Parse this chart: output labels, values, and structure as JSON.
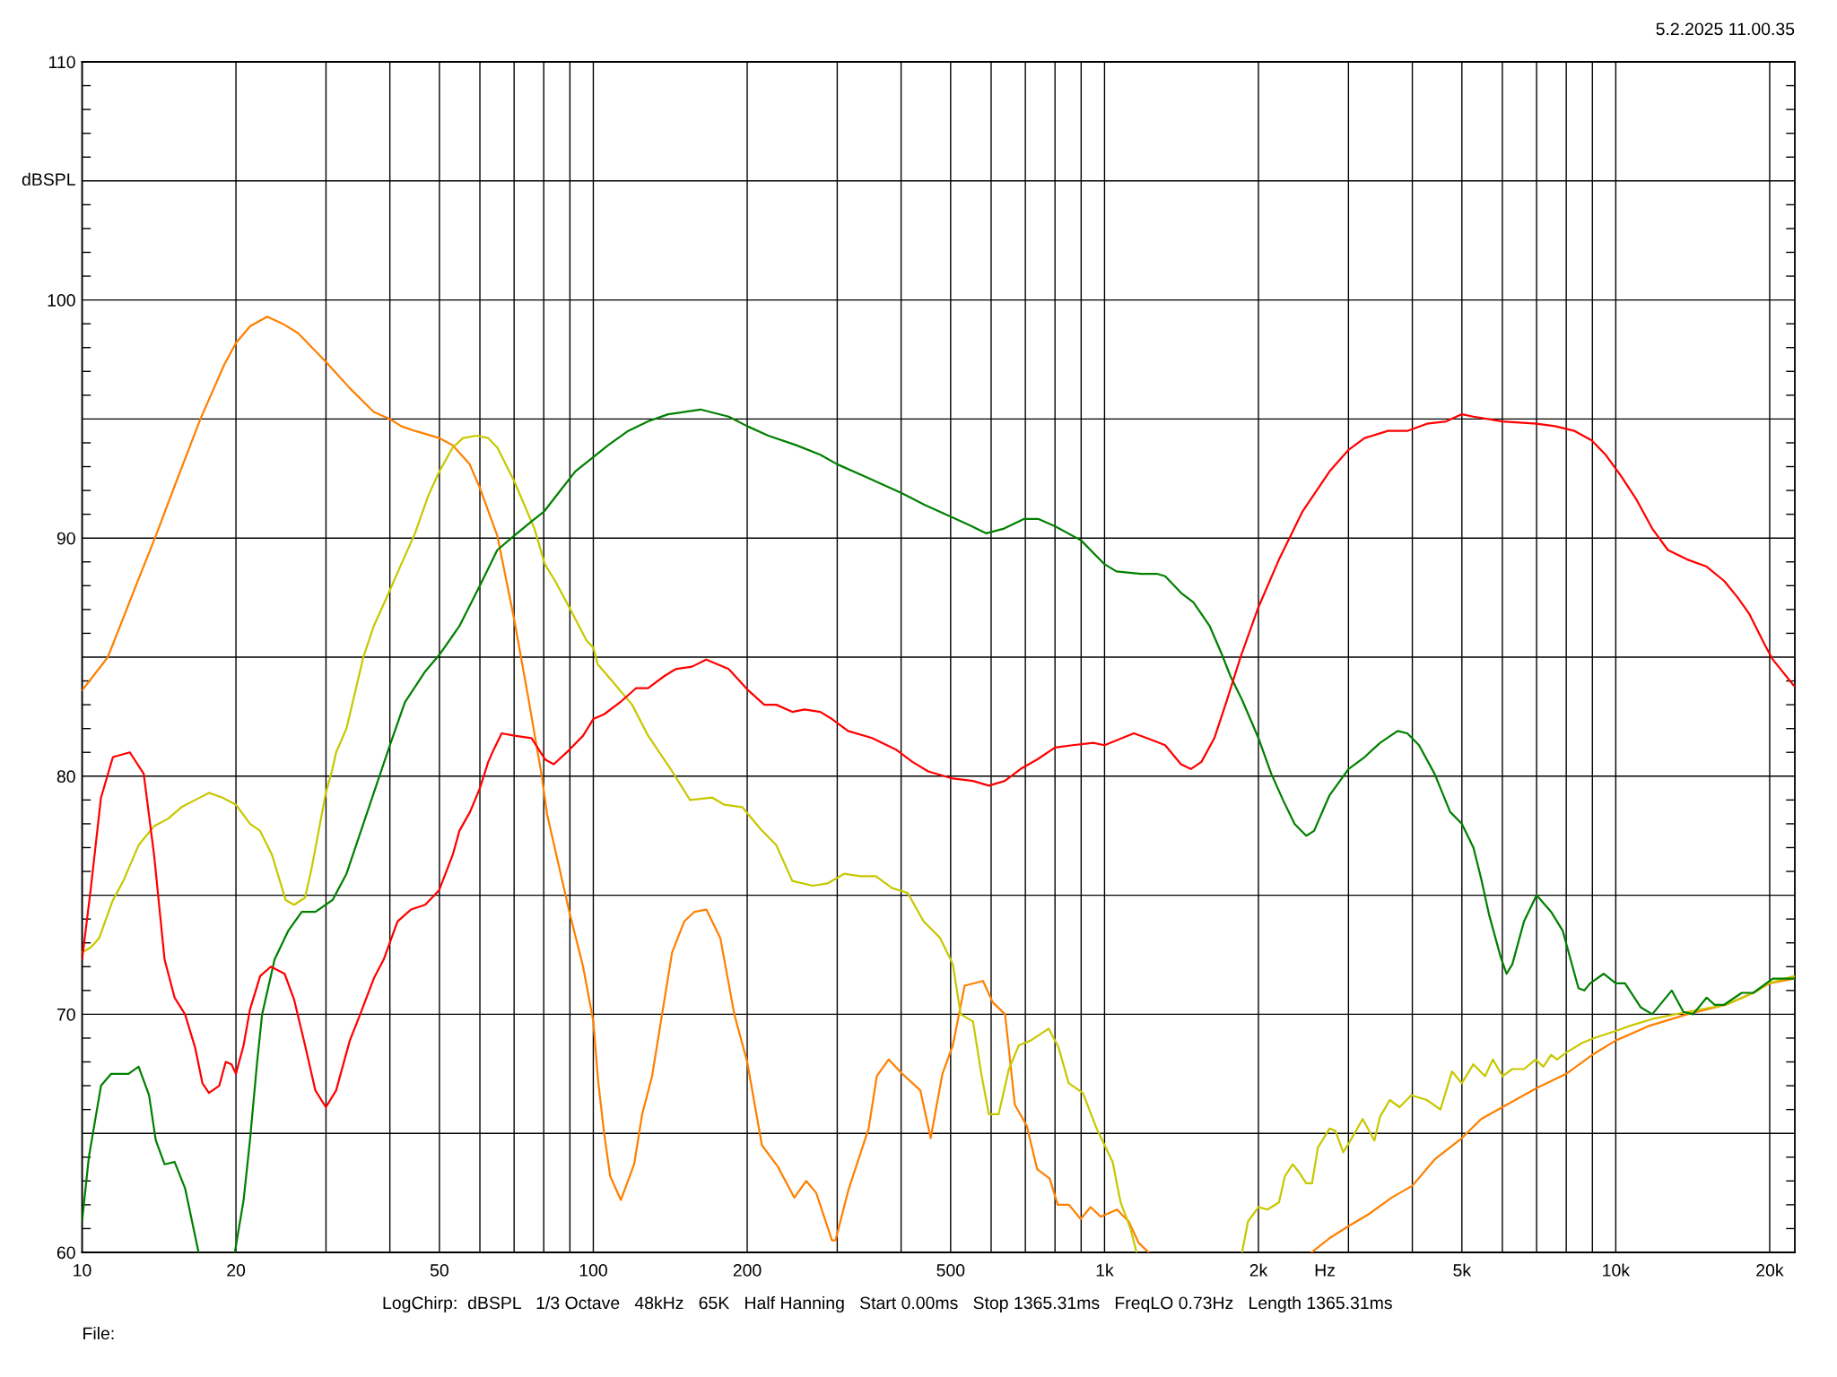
{
  "chart_data": {
    "type": "line",
    "xlabel": "Hz",
    "ylabel": "dBSPL",
    "annotations": [
      "5.2.2025 11.00.35",
      "LogChirp:  dBSPL   1/3 Octave   48kHz   65K   Half Hanning   Start 0.00ms   Stop 1365.31ms   FreqLO 0.73Hz   Length 1365.31ms",
      "File:"
    ],
    "log": "x",
    "grid": true,
    "xlim": [
      10,
      22400
    ],
    "ylim": [
      60,
      110
    ],
    "xticks": [
      10,
      20,
      {
        "value": 30,
        "label": null
      },
      {
        "value": 40,
        "label": null
      },
      50,
      {
        "value": 60,
        "label": null
      },
      {
        "value": 70,
        "label": null
      },
      {
        "value": 80,
        "label": null
      },
      {
        "value": 90,
        "label": null
      },
      100,
      200,
      {
        "value": 300,
        "label": null
      },
      {
        "value": 400,
        "label": null
      },
      500,
      {
        "value": 600,
        "label": null
      },
      {
        "value": 700,
        "label": null
      },
      {
        "value": 800,
        "label": null
      },
      {
        "value": 900,
        "label": null
      },
      {
        "value": 1000,
        "label": "1k"
      },
      {
        "value": 2000,
        "label": "2k"
      },
      {
        "value": 3000,
        "label": null
      },
      {
        "value": 4000,
        "label": null
      },
      {
        "value": 5000,
        "label": "5k"
      },
      {
        "value": 6000,
        "label": null
      },
      {
        "value": 7000,
        "label": null
      },
      {
        "value": 8000,
        "label": null
      },
      {
        "value": 9000,
        "label": null
      },
      {
        "value": 10000,
        "label": "10k"
      },
      {
        "value": 20000,
        "label": "20k"
      }
    ],
    "yticks": [
      60,
      {
        "value": 65,
        "label": null
      },
      70,
      {
        "value": 75,
        "label": null
      },
      80,
      {
        "value": 85,
        "label": null
      },
      90,
      {
        "value": 95,
        "label": null
      },
      100,
      {
        "value": 105,
        "label": null
      },
      110
    ],
    "series": [
      {
        "color": "#ff8000",
        "x": [
          10,
          11.23,
          12.8,
          13.94,
          15.18,
          17.04,
          18.99,
          20,
          21.33,
          23.03,
          24.7,
          26.47,
          30,
          33.38,
          37.2,
          40,
          42.1,
          44.8,
          50,
          53.07,
          57.3,
          60,
          64.9,
          70,
          74.6,
          79.3,
          81.2,
          85.7,
          90,
          95.5,
          100,
          102.2,
          105,
          107.9,
          113.2,
          120.2,
          124.6,
          130.3,
          136.3,
          142.6,
          150.6,
          157.6,
          166.4,
          177.2,
          188.7,
          200,
          213.7,
          229.6,
          247.3,
          260.8,
          272.9,
          293,
          297.6,
          315.3,
          345.6,
          358.5,
          378.2,
          402.2,
          436.3,
          457,
          481.8,
          505,
          532.5,
          578.5,
          604.4,
          638.9,
          667.6,
          705,
          738,
          781,
          810,
          851.6,
          898,
          939,
          983,
          1058,
          1115,
          1166,
          1220,
          1700,
          2540,
          2756,
          3000,
          3284,
          3646,
          4000,
          4421,
          5000,
          5453,
          6000,
          7000,
          8000,
          9000,
          10000,
          11580,
          13796,
          16437,
          18578,
          20000,
          22300
        ],
        "values": [
          83.6,
          85.0,
          88.1,
          90.1,
          92.2,
          95.0,
          97.3,
          98.2,
          98.9,
          99.3,
          99.0,
          98.6,
          97.4,
          96.3,
          95.3,
          95.0,
          94.7,
          94.5,
          94.2,
          93.9,
          93.1,
          92.1,
          90.1,
          86.6,
          83.3,
          80.0,
          78.4,
          76.2,
          74.2,
          72.0,
          69.7,
          67.2,
          65.0,
          63.2,
          62.2,
          63.7,
          65.8,
          67.4,
          70.0,
          72.6,
          73.9,
          74.3,
          74.4,
          73.2,
          70.0,
          68.0,
          64.5,
          63.6,
          62.3,
          63.0,
          62.5,
          60.5,
          60.5,
          62.6,
          65.2,
          67.4,
          68.1,
          67.5,
          66.8,
          64.8,
          67.5,
          68.7,
          71.2,
          71.4,
          70.5,
          70.0,
          66.2,
          65.3,
          63.5,
          63.1,
          62.0,
          62.0,
          61.4,
          61.9,
          61.5,
          61.8,
          61.3,
          60.4,
          60.0,
          null,
          60.0,
          60.6,
          61.1,
          61.6,
          62.3,
          62.8,
          63.9,
          64.8,
          65.6,
          66.1,
          66.9,
          67.5,
          68.3,
          68.9,
          69.5,
          70.0,
          70.4,
          70.9,
          71.3,
          71.5
        ]
      },
      {
        "color": "#c8c800",
        "x": [
          10,
          10.39,
          10.8,
          11.49,
          12.04,
          12.9,
          13.83,
          14.7,
          15.65,
          16.64,
          17.71,
          18.83,
          20,
          21.3,
          22.3,
          23.52,
          25.01,
          26.0,
          27.3,
          28.1,
          29.98,
          30.8,
          31.4,
          32.9,
          35.5,
          37.2,
          39.6,
          42.1,
          44.8,
          47.6,
          50,
          53.07,
          55.6,
          59.1,
          62.3,
          64.9,
          70,
          76.7,
          80.4,
          84.2,
          89.7,
          97.0,
          100,
          102,
          108.8,
          119.1,
          128,
          142.6,
          154.6,
          170.9,
          180.5,
          195.6,
          212,
          228,
          245,
          268.7,
          287.5,
          309.5,
          332.4,
          357,
          384,
          412,
          442.7,
          477,
          505,
          523,
          553,
          574,
          594,
          620.6,
          650,
          680,
          717.6,
          777.5,
          813,
          851,
          907,
          965,
          1037,
          1075,
          1124,
          1155,
          1500,
          1858,
          1908,
          2000,
          2082,
          2194,
          2253,
          2334,
          2395,
          2480,
          2546,
          2614,
          2755,
          2829,
          2930,
          3008,
          3198,
          3372,
          3459,
          3614,
          3776,
          3981,
          4269,
          4539,
          4784,
          4997,
          5267,
          5550,
          5749,
          6008,
          6276,
          6614,
          6970,
          7218,
          7474,
          7674,
          8017,
          8600,
          9066,
          10000,
          10610,
          11783,
          13796,
          16437,
          18578,
          19930,
          22300
        ],
        "values": [
          72.6,
          72.8,
          73.2,
          74.8,
          75.6,
          77.1,
          77.9,
          78.2,
          78.7,
          79.0,
          79.3,
          79.1,
          78.8,
          78.0,
          77.7,
          76.7,
          74.8,
          74.6,
          74.9,
          76.1,
          79.3,
          80.2,
          81.0,
          82.0,
          85.0,
          86.3,
          87.6,
          88.9,
          90.2,
          91.8,
          92.8,
          93.8,
          94.2,
          94.3,
          94.2,
          93.8,
          92.4,
          90.4,
          88.9,
          88.2,
          87.1,
          85.7,
          85.4,
          84.7,
          84.0,
          83.0,
          81.7,
          80.2,
          79.0,
          79.1,
          78.8,
          78.7,
          77.8,
          77.1,
          75.6,
          75.4,
          75.5,
          75.9,
          75.8,
          75.8,
          75.3,
          75.1,
          73.9,
          73.2,
          72.1,
          70.0,
          69.7,
          67.5,
          65.8,
          65.8,
          67.7,
          68.7,
          68.9,
          69.4,
          68.6,
          67.1,
          66.7,
          65.2,
          63.8,
          62.1,
          61.0,
          60.0,
          null,
          60.0,
          61.3,
          61.9,
          61.8,
          62.1,
          63.2,
          63.7,
          63.4,
          62.9,
          62.9,
          64.4,
          65.2,
          65.1,
          64.2,
          64.6,
          65.6,
          64.7,
          65.7,
          66.4,
          66.1,
          66.6,
          66.4,
          66.0,
          67.6,
          67.1,
          67.9,
          67.4,
          68.1,
          67.4,
          67.7,
          67.7,
          68.1,
          67.8,
          68.3,
          68.1,
          68.4,
          68.8,
          69.0,
          69.3,
          69.5,
          69.8,
          70.1,
          70.4,
          70.9,
          71.3,
          71.6
        ]
      },
      {
        "color": "#008000",
        "x": [
          10,
          10.31,
          10.89,
          11.4,
          12.32,
          12.9,
          13.52,
          13.94,
          14.5,
          15.17,
          15.9,
          16.9,
          18.4,
          19.9,
          20.7,
          21.3,
          22.0,
          22.5,
          23.8,
          25.3,
          26.9,
          28.6,
          30.9,
          32.9,
          35.5,
          38.3,
          40,
          42.8,
          46.9,
          50,
          54.7,
          60,
          64.9,
          70,
          75.7,
          80,
          85.5,
          92.2,
          100,
          106.9,
          117,
          128,
          140,
          162,
          184,
          200,
          220,
          249.5,
          278,
          300,
          339,
          400,
          444,
          500,
          550,
          587,
          636,
          695,
          743,
          800,
          900,
          1000,
          1055,
          1177,
          1266,
          1314,
          1411,
          1492,
          1606,
          1690,
          1763,
          1858,
          2000,
          2119,
          2234,
          2353,
          2480,
          2569,
          2755,
          3000,
          3226,
          3459,
          3743,
          3911,
          4122,
          4421,
          4742,
          5000,
          5267,
          5453,
          5649,
          5955,
          6114,
          6276,
          6614,
          7000,
          7474,
          7877,
          8452,
          8679,
          8909,
          9469,
          10000,
          10426,
          11180,
          11783,
          12866,
          13560,
          14165,
          15058,
          15600,
          16293,
          17630,
          18578,
          20280,
          22300
        ],
        "values": [
          61.3,
          64.0,
          67.0,
          67.5,
          67.5,
          67.8,
          66.6,
          64.7,
          63.7,
          63.8,
          62.7,
          60.0,
          null,
          60.0,
          62.2,
          64.7,
          68.0,
          70.0,
          72.3,
          73.5,
          74.3,
          74.3,
          74.8,
          75.9,
          78.0,
          80.1,
          81.3,
          83.1,
          84.4,
          85.1,
          86.3,
          88.0,
          89.5,
          90.1,
          90.7,
          91.1,
          91.9,
          92.8,
          93.4,
          93.9,
          94.5,
          94.9,
          95.2,
          95.4,
          95.1,
          94.7,
          94.3,
          93.9,
          93.5,
          93.1,
          92.6,
          91.9,
          91.4,
          90.9,
          90.5,
          90.2,
          90.4,
          90.8,
          90.8,
          90.5,
          89.9,
          88.9,
          88.6,
          88.5,
          88.5,
          88.4,
          87.7,
          87.3,
          86.3,
          85.2,
          84.2,
          83.2,
          81.6,
          80.1,
          79.0,
          78.0,
          77.5,
          77.7,
          79.2,
          80.3,
          80.8,
          81.4,
          81.9,
          81.8,
          81.3,
          80.1,
          78.5,
          78.0,
          77.0,
          75.7,
          74.2,
          72.4,
          71.7,
          72.1,
          73.9,
          75.0,
          74.3,
          73.5,
          71.1,
          71.0,
          71.3,
          71.7,
          71.3,
          71.3,
          70.3,
          70.0,
          71.0,
          70.1,
          70.0,
          70.7,
          70.4,
          70.4,
          70.9,
          70.9,
          71.5,
          71.5
        ]
      },
      {
        "color": "#ff0000",
        "x": [
          10,
          10.39,
          10.89,
          11.49,
          12.4,
          13.2,
          13.83,
          14.5,
          15.17,
          15.9,
          16.64,
          17.2,
          17.71,
          18.55,
          19.1,
          19.6,
          20,
          20.7,
          21.3,
          22.3,
          23.4,
          24.9,
          26.0,
          27.3,
          28.6,
          29.98,
          31.4,
          33.4,
          35.0,
          37.2,
          38.9,
          41.4,
          44.0,
          46.9,
          49.9,
          53.1,
          54.7,
          57.4,
          60,
          62.3,
          63.8,
          66.2,
          70.1,
          75.7,
          80.5,
          83.7,
          89.7,
          95.5,
          100,
          105,
          112.8,
          121.3,
          128,
          137.6,
          145,
          156,
          166.3,
          184,
          201,
          216,
          228,
          245,
          259,
          278,
          293,
          315,
          351,
          392,
          421,
          452,
          505,
          553,
          594,
          638,
          685,
          738,
          800,
          866,
          950,
          1000,
          1141,
          1245,
          1314,
          1411,
          1475,
          1547,
          1640,
          1730,
          1845,
          2000,
          2194,
          2437,
          2755,
          3000,
          3226,
          3583,
          3911,
          4269,
          4659,
          5000,
          5267,
          6000,
          7000,
          7606,
          8306,
          8970,
          9552,
          10245,
          10987,
          11783,
          12643,
          13796,
          15058,
          16293,
          17322,
          18262,
          19585,
          20280,
          22300
        ],
        "values": [
          72.3,
          75.2,
          79.1,
          80.8,
          81.0,
          80.1,
          76.7,
          72.3,
          70.7,
          70.0,
          68.6,
          67.1,
          66.7,
          67.0,
          68.0,
          67.9,
          67.5,
          68.7,
          70.2,
          71.6,
          72.0,
          71.7,
          70.6,
          68.7,
          66.8,
          66.1,
          66.8,
          68.9,
          70.0,
          71.5,
          72.3,
          73.9,
          74.4,
          74.6,
          75.2,
          76.7,
          77.7,
          78.5,
          79.5,
          80.6,
          81.1,
          81.8,
          81.7,
          81.6,
          80.7,
          80.5,
          81.1,
          81.7,
          82.4,
          82.6,
          83.1,
          83.7,
          83.7,
          84.2,
          84.5,
          84.6,
          84.9,
          84.5,
          83.6,
          83.0,
          83.0,
          82.7,
          82.8,
          82.7,
          82.4,
          81.9,
          81.6,
          81.1,
          80.6,
          80.2,
          79.9,
          79.8,
          79.6,
          79.8,
          80.3,
          80.7,
          81.2,
          81.3,
          81.4,
          81.3,
          81.8,
          81.5,
          81.3,
          80.5,
          80.3,
          80.6,
          81.6,
          83.1,
          85.0,
          87.1,
          89.1,
          91.1,
          92.8,
          93.7,
          94.2,
          94.5,
          94.5,
          94.8,
          94.9,
          95.2,
          95.1,
          94.9,
          94.8,
          94.7,
          94.5,
          94.1,
          93.5,
          92.6,
          91.6,
          90.4,
          89.5,
          89.1,
          88.8,
          88.2,
          87.5,
          86.8,
          85.5,
          84.9,
          83.8
        ]
      }
    ]
  }
}
